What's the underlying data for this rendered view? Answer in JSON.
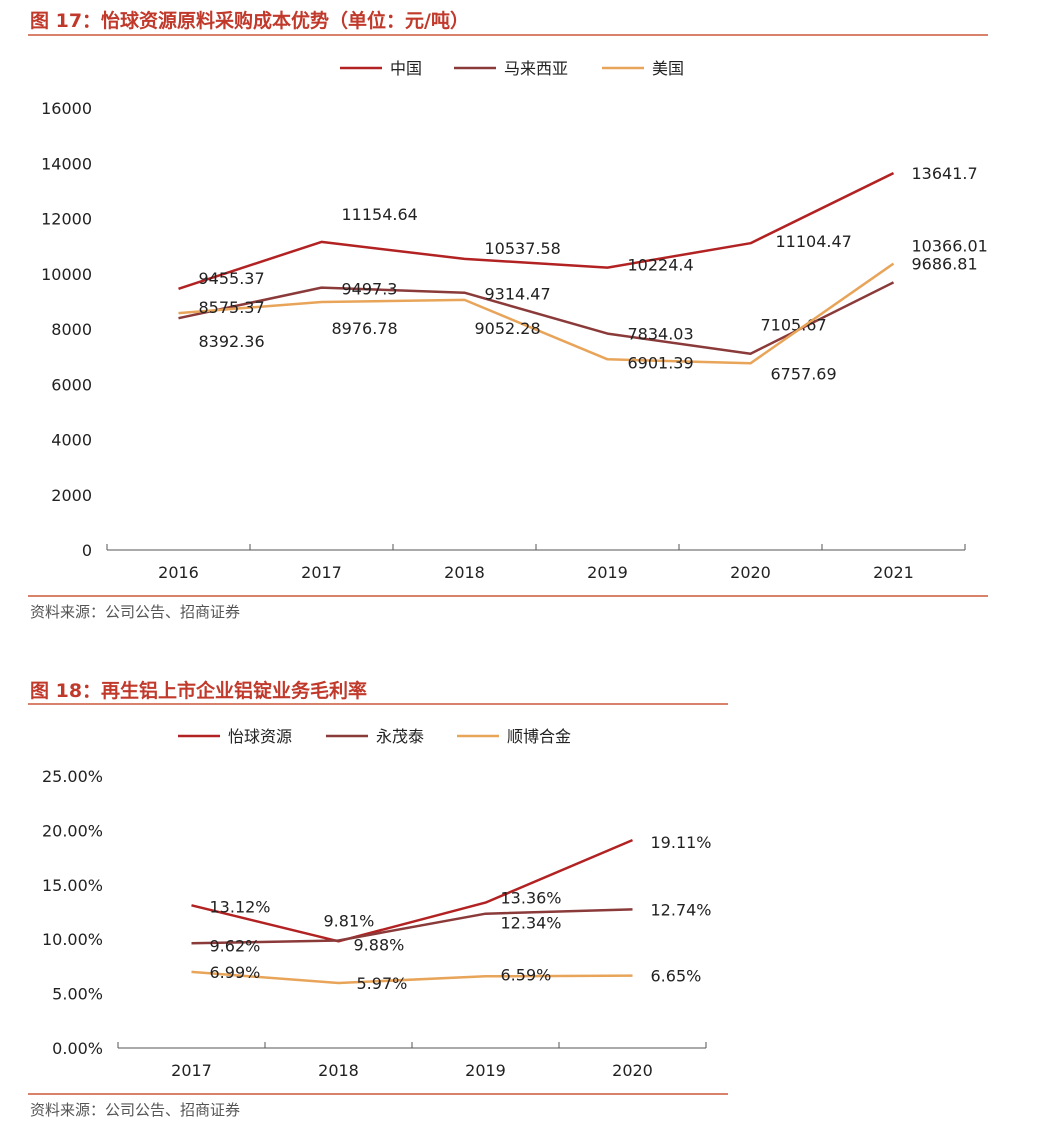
{
  "figures": [
    {
      "title": "图 17：怡球资源原料采购成本优势（单位：元/吨）",
      "source": "资料来源：公司公告、招商证券"
    },
    {
      "title": "图 18：再生铝上市企业铝锭业务毛利率",
      "source": "资料来源：公司公告、招商证券"
    }
  ],
  "chart_data": [
    {
      "type": "line",
      "title": "",
      "xlabel": "",
      "ylabel": "",
      "categories": [
        "2016",
        "2017",
        "2018",
        "2019",
        "2020",
        "2021"
      ],
      "ylim": [
        0,
        16000
      ],
      "yticks": [
        "0",
        "2000",
        "4000",
        "6000",
        "8000",
        "10000",
        "12000",
        "14000",
        "16000"
      ],
      "legend_position": "top-center",
      "grid": false,
      "series": [
        {
          "name": "中国",
          "color": "#b22222",
          "values": [
            9455.37,
            11154.64,
            10537.58,
            10224.4,
            11104.47,
            13641.7
          ],
          "labels": [
            "9455.37",
            "11154.64",
            "10537.58",
            "10224.4",
            "11104.47",
            "13641.7"
          ]
        },
        {
          "name": "马来西亚",
          "color": "#8b3a3a",
          "values": [
            8392.36,
            9497.3,
            9314.47,
            7834.03,
            7105.67,
            9686.81
          ],
          "labels": [
            "8392.36",
            "9497.3",
            "9314.47",
            "7834.03",
            "7105.67",
            "9686.81"
          ]
        },
        {
          "name": "美国",
          "color": "#e8a55a",
          "values": [
            8575.37,
            8976.78,
            9052.28,
            6901.39,
            6757.69,
            10366.01
          ],
          "labels": [
            "8575.37",
            "8976.78",
            "9052.28",
            "6901.39",
            "6757.69",
            "10366.01"
          ]
        }
      ]
    },
    {
      "type": "line",
      "title": "",
      "xlabel": "",
      "ylabel": "",
      "categories": [
        "2017",
        "2018",
        "2019",
        "2020"
      ],
      "ylim": [
        0,
        25
      ],
      "yticks": [
        "0.00%",
        "5.00%",
        "10.00%",
        "15.00%",
        "20.00%",
        "25.00%"
      ],
      "legend_position": "top-center",
      "grid": false,
      "series": [
        {
          "name": "怡球资源",
          "color": "#b22222",
          "values": [
            13.12,
            9.81,
            13.36,
            19.11
          ],
          "labels": [
            "13.12%",
            "9.81%",
            "13.36%",
            "19.11%"
          ]
        },
        {
          "name": "永茂泰",
          "color": "#8b3a3a",
          "values": [
            9.62,
            9.88,
            12.34,
            12.74
          ],
          "labels": [
            "9.62%",
            "9.88%",
            "12.34%",
            "12.74%"
          ]
        },
        {
          "name": "顺博合金",
          "color": "#e8a55a",
          "values": [
            6.99,
            5.97,
            6.59,
            6.65
          ],
          "labels": [
            "6.99%",
            "5.97%",
            "6.59%",
            "6.65%"
          ]
        }
      ]
    }
  ]
}
